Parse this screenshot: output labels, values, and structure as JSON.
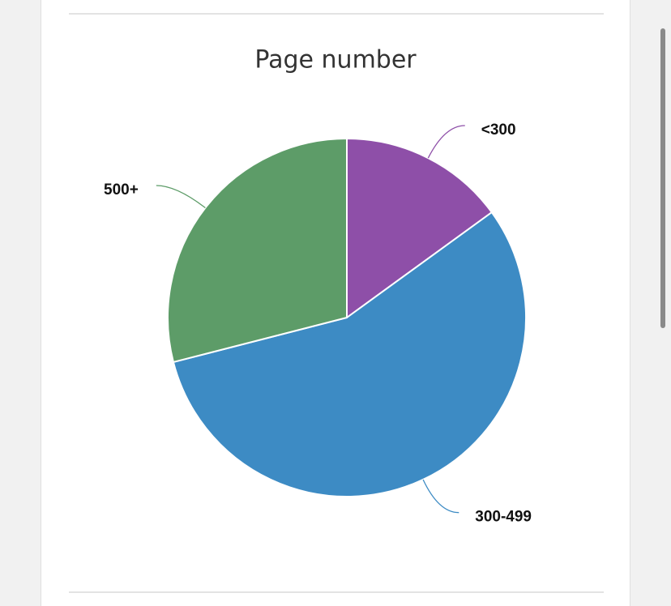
{
  "chart_data": {
    "type": "pie",
    "title": "Page number",
    "categories": [
      "<300",
      "300-499",
      "500+"
    ],
    "values": [
      15,
      56,
      29
    ],
    "colors": [
      "#8e4fa8",
      "#3d8bc4",
      "#5d9c68"
    ]
  }
}
